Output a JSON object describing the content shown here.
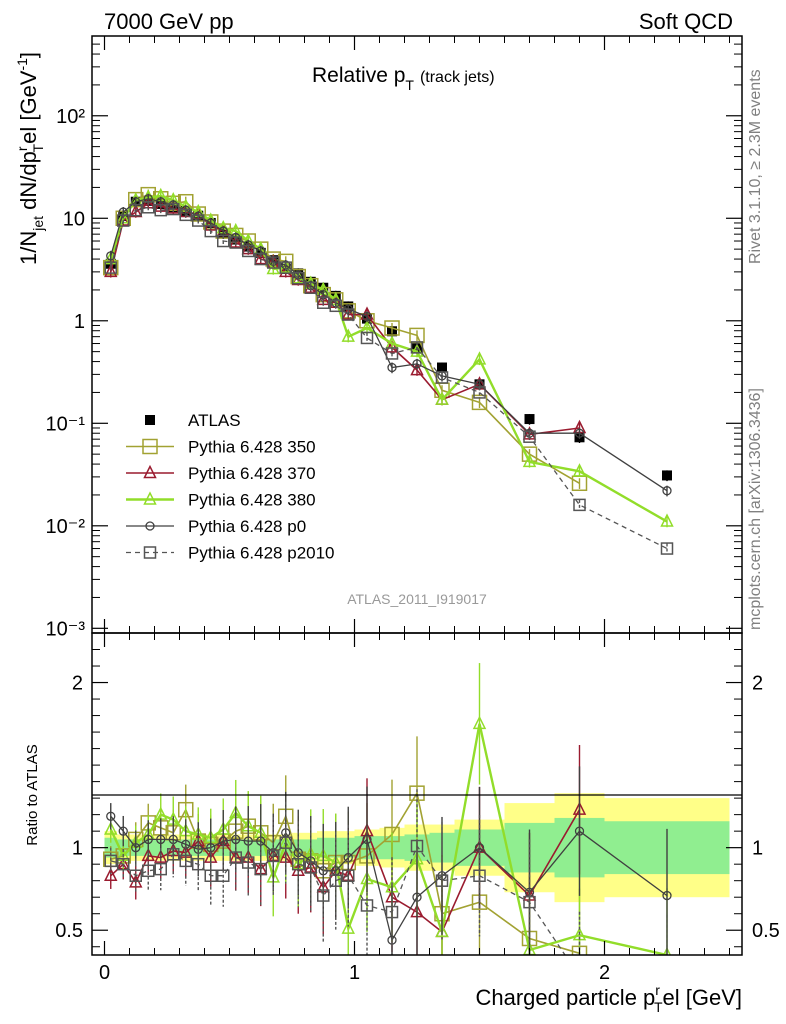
{
  "header": {
    "left": "7000 GeV pp",
    "right": "Soft QCD"
  },
  "side_labels": {
    "right_top": "Rivet 3.1.10, ≥ 2.3M events",
    "right_bottom": "mcplots.cern.ch [arXiv:1306.3436]"
  },
  "chart_data": {
    "type": "scatter",
    "title": "Relative pₜ (track jets)",
    "title_parts": {
      "main": "Relative p",
      "sub": "T",
      "suffix": "(track jets)"
    },
    "ylabel": "1/N_jet dN/dp_T^rel [GeV⁻¹]",
    "ylabel_parts": {
      "a": "1/N",
      "a_sub": "jet",
      "b": " dN/dp",
      "b_sup": "r",
      "b_sub": "T",
      "c": "el [GeV",
      "c_sup": "-1",
      "d": "]"
    },
    "xlabel": "Charged particle p_T^rel [GeV]",
    "xlabel_parts": {
      "a": "Charged particle p",
      "sup": "r",
      "sub": "T",
      "b": "el [GeV]"
    },
    "ratio_ylabel": "Ratio to ATLAS",
    "analysis_label": "ATLAS_2011_I919017",
    "xlim": [
      -0.05,
      2.55
    ],
    "ylim": [
      0.0009,
      600
    ],
    "yscale": "log",
    "ratio_ylim": [
      0.35,
      2.3
    ],
    "x_ticks": [
      "0",
      "1",
      "2"
    ],
    "y_ticks": [
      "10⁻³",
      "10⁻²",
      "10⁻¹",
      "1",
      "10",
      "10²"
    ],
    "ratio_y_ticks": [
      "0.5",
      "1",
      "2"
    ],
    "legend_position": "middle-left",
    "colors": {
      "ATLAS": "#000000",
      "350": "#a2a232",
      "370": "#9a1b2f",
      "380": "#92dd2a",
      "p0": "#404040",
      "p2010": "#555555",
      "band_outer": "#ffff88",
      "band_inner": "#90ee90"
    },
    "x": [
      0.025,
      0.075,
      0.125,
      0.175,
      0.225,
      0.275,
      0.325,
      0.375,
      0.425,
      0.475,
      0.525,
      0.575,
      0.625,
      0.675,
      0.725,
      0.775,
      0.825,
      0.875,
      0.925,
      0.975,
      1.05,
      1.15,
      1.25,
      1.35,
      1.5,
      1.7,
      1.9,
      2.25
    ],
    "series": [
      {
        "name": "ATLAS",
        "marker": "filled-square",
        "values": [
          3.6,
          10.5,
          14.5,
          14.8,
          13.8,
          12.8,
          11.8,
          10.6,
          9.0,
          7.2,
          6.2,
          5.3,
          4.6,
          3.9,
          3.2,
          2.9,
          2.4,
          2.1,
          1.75,
          1.38,
          1.05,
          0.79,
          0.54,
          0.35,
          0.24,
          0.11,
          0.073,
          0.031
        ]
      },
      {
        "name": "Pythia 6.428 350",
        "marker": "open-square",
        "values": [
          3.3,
          10.0,
          15.2,
          17.0,
          15.5,
          14.0,
          14.5,
          11.0,
          9.2,
          7.5,
          6.8,
          6.0,
          5.0,
          4.0,
          3.8,
          2.7,
          2.2,
          1.8,
          1.6,
          1.25,
          1.0,
          0.85,
          0.72,
          0.21,
          0.16,
          0.05,
          0.026,
          null
        ]
      },
      {
        "name": "Pythia 6.428 370",
        "marker": "open-triangle",
        "values": [
          3.0,
          9.5,
          11.5,
          14.0,
          13.0,
          12.5,
          11.5,
          11.0,
          8.5,
          7.5,
          5.8,
          5.0,
          4.0,
          3.7,
          3.0,
          2.5,
          2.1,
          1.6,
          1.5,
          1.15,
          1.15,
          0.55,
          0.33,
          0.17,
          0.24,
          0.078,
          0.09,
          null
        ]
      },
      {
        "name": "Pythia 6.428 380",
        "marker": "open-triangle",
        "values": [
          4.0,
          10.0,
          15.0,
          16.0,
          16.5,
          15.0,
          13.0,
          11.5,
          9.5,
          8.0,
          7.5,
          6.0,
          5.0,
          3.2,
          3.3,
          2.6,
          2.3,
          2.0,
          1.6,
          0.7,
          0.85,
          0.6,
          0.5,
          0.17,
          0.42,
          0.042,
          0.034,
          0.011
        ]
      },
      {
        "name": "Pythia 6.428 p0",
        "marker": "open-circle",
        "values": [
          4.3,
          11.5,
          14.5,
          15.5,
          14.5,
          13.5,
          12.0,
          10.5,
          9.0,
          7.5,
          6.5,
          5.5,
          4.8,
          3.8,
          3.5,
          2.8,
          2.2,
          1.8,
          1.5,
          1.3,
          1.1,
          0.35,
          0.38,
          0.29,
          0.24,
          0.08,
          0.08,
          0.022
        ]
      },
      {
        "name": "Pythia 6.428 p2010",
        "marker": "open-square",
        "values": [
          3.3,
          9.5,
          12.0,
          12.8,
          12.0,
          12.3,
          10.8,
          9.5,
          7.5,
          6.0,
          5.8,
          4.8,
          4.0,
          3.7,
          3.3,
          2.6,
          2.1,
          1.5,
          1.4,
          1.15,
          0.68,
          0.48,
          0.55,
          0.28,
          0.2,
          0.074,
          0.016,
          0.006
        ]
      }
    ],
    "ratio_series": [
      {
        "name": "Pythia 6.428 350",
        "values": [
          0.93,
          0.95,
          1.05,
          1.15,
          1.12,
          1.09,
          1.23,
          1.04,
          1.02,
          1.04,
          1.1,
          1.13,
          1.09,
          1.03,
          1.19,
          0.93,
          0.92,
          0.86,
          0.91,
          0.91,
          0.95,
          1.08,
          1.33,
          0.6,
          0.67,
          0.45,
          0.36,
          null
        ]
      },
      {
        "name": "Pythia 6.428 370",
        "values": [
          0.83,
          0.9,
          0.79,
          0.95,
          0.94,
          0.98,
          0.97,
          1.04,
          0.94,
          1.04,
          0.94,
          0.94,
          0.87,
          0.95,
          0.94,
          0.86,
          0.88,
          0.76,
          0.86,
          0.83,
          1.1,
          0.7,
          0.61,
          0.49,
          1.0,
          0.71,
          1.23,
          null
        ]
      },
      {
        "name": "Pythia 6.428 380",
        "values": [
          1.11,
          0.95,
          1.03,
          1.08,
          1.2,
          1.17,
          1.1,
          1.08,
          1.06,
          1.11,
          1.21,
          1.13,
          1.09,
          0.82,
          1.03,
          0.9,
          0.96,
          0.95,
          0.91,
          0.51,
          0.81,
          0.76,
          0.93,
          0.49,
          1.75,
          0.38,
          0.47,
          0.35
        ]
      },
      {
        "name": "Pythia 6.428 p0",
        "values": [
          1.19,
          1.1,
          1.0,
          1.05,
          1.05,
          1.05,
          1.02,
          0.99,
          1.0,
          1.04,
          1.05,
          1.04,
          1.04,
          0.97,
          1.09,
          0.97,
          0.92,
          0.86,
          0.86,
          0.94,
          1.05,
          0.44,
          0.7,
          0.83,
          1.0,
          0.73,
          1.1,
          0.71
        ]
      },
      {
        "name": "Pythia 6.428 p2010",
        "values": [
          0.92,
          0.9,
          0.83,
          0.86,
          0.87,
          0.96,
          0.92,
          0.9,
          0.83,
          0.83,
          0.94,
          0.91,
          0.87,
          0.95,
          1.03,
          0.9,
          0.88,
          0.71,
          0.8,
          0.83,
          0.65,
          0.61,
          1.01,
          0.8,
          0.83,
          0.67,
          0.22,
          0.19
        ]
      }
    ],
    "ratio_band": {
      "edges": [
        0.0,
        0.05,
        0.1,
        0.15,
        0.2,
        0.25,
        0.3,
        0.35,
        0.4,
        0.45,
        0.5,
        0.55,
        0.6,
        0.65,
        0.7,
        0.75,
        0.8,
        0.85,
        0.9,
        0.95,
        1.0,
        1.1,
        1.2,
        1.3,
        1.4,
        1.6,
        1.8,
        2.0,
        2.5
      ],
      "inner": [
        0.06,
        0.05,
        0.05,
        0.05,
        0.05,
        0.05,
        0.05,
        0.05,
        0.05,
        0.05,
        0.05,
        0.05,
        0.05,
        0.05,
        0.05,
        0.05,
        0.05,
        0.06,
        0.06,
        0.06,
        0.07,
        0.07,
        0.08,
        0.09,
        0.11,
        0.15,
        0.18,
        0.16
      ],
      "outer": [
        0.1,
        0.08,
        0.08,
        0.08,
        0.08,
        0.08,
        0.08,
        0.08,
        0.08,
        0.08,
        0.08,
        0.08,
        0.08,
        0.08,
        0.08,
        0.09,
        0.09,
        0.1,
        0.1,
        0.1,
        0.11,
        0.12,
        0.14,
        0.14,
        0.17,
        0.27,
        0.33,
        0.3
      ]
    }
  }
}
